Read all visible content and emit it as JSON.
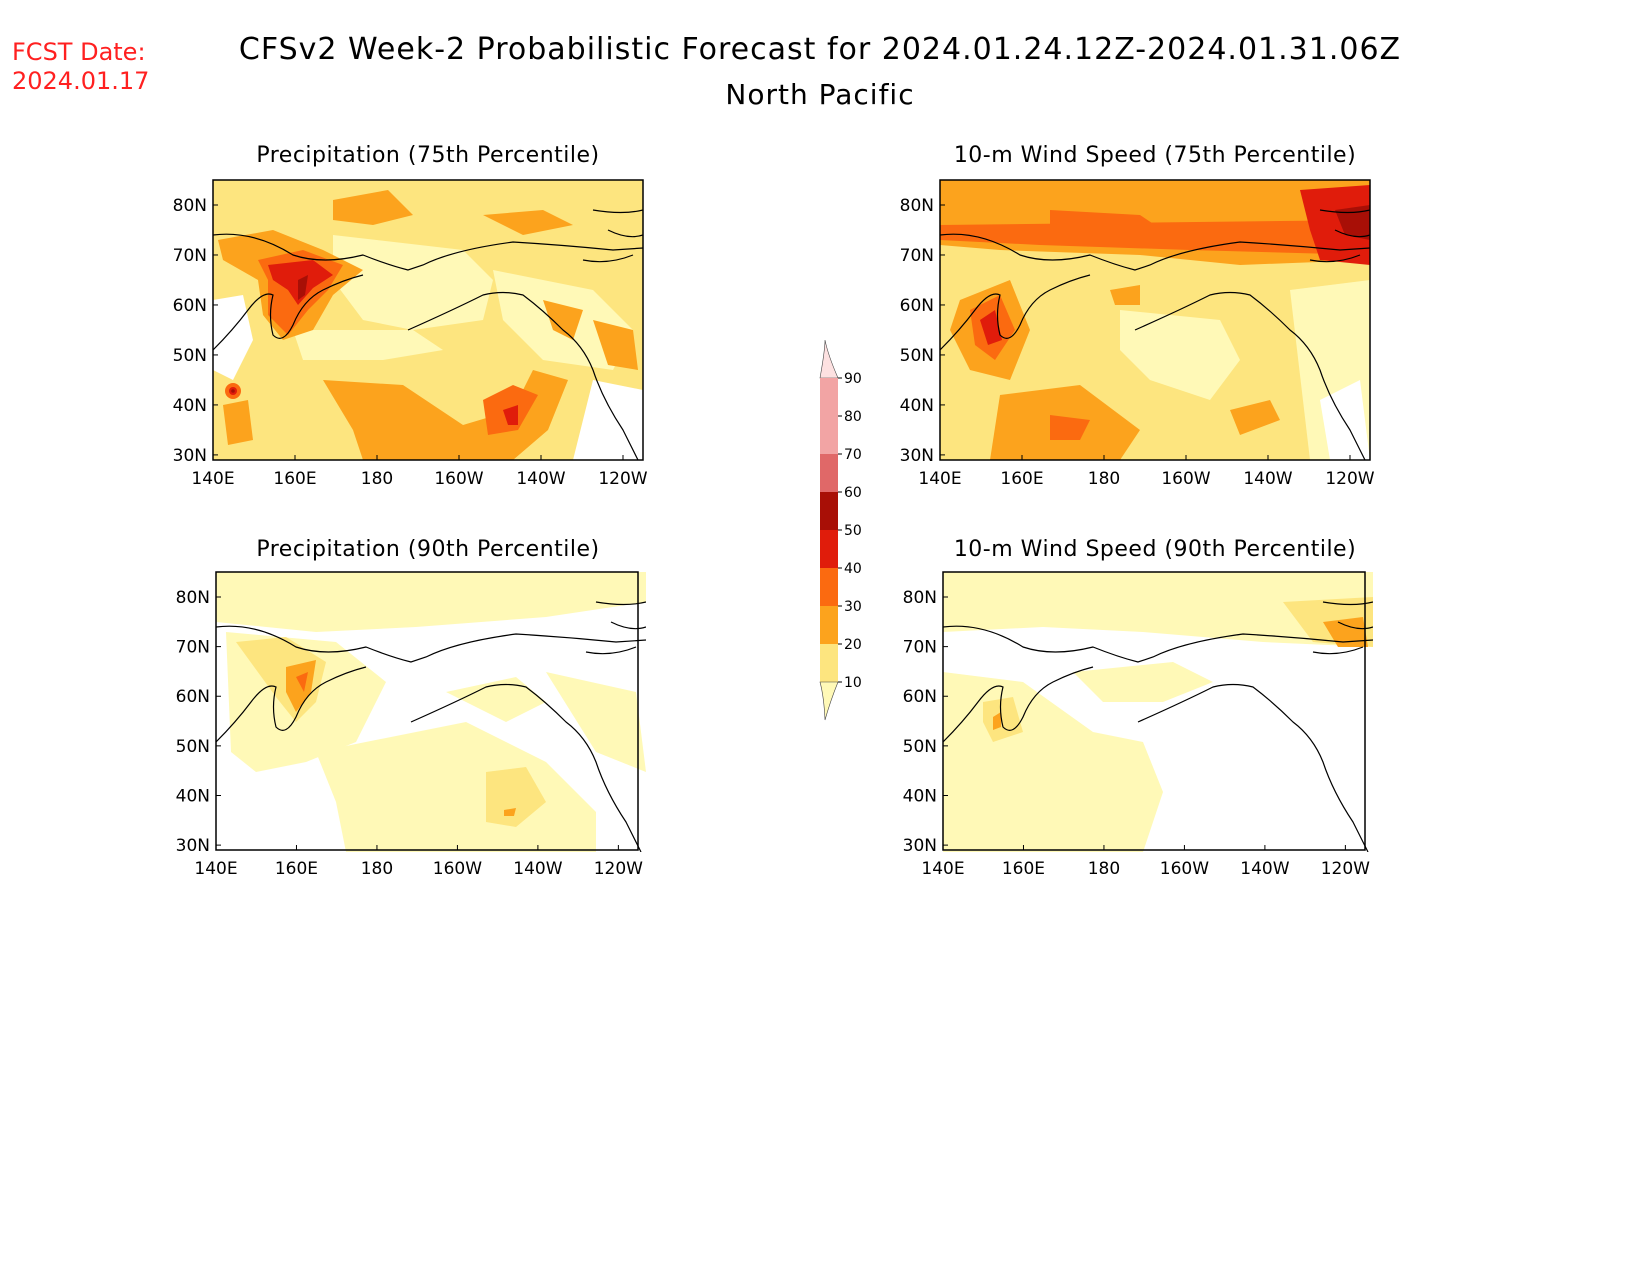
{
  "fcst_label": "FCST Date:",
  "fcst_date": "2024.01.17",
  "title": "CFSv2 Week-2 Probabilistic Forecast for 2024.01.24.12Z-2024.01.31.06Z",
  "subtitle": "North Pacific",
  "panels": [
    {
      "title": "Precipitation (75th Percentile)"
    },
    {
      "title": "10-m Wind Speed (75th Percentile)"
    },
    {
      "title": "Precipitation (90th Percentile)"
    },
    {
      "title": "10-m Wind Speed (90th Percentile)"
    }
  ],
  "axes": {
    "lon_labels": [
      "140E",
      "160E",
      "180",
      "160W",
      "140W",
      "120W"
    ],
    "lat_labels": [
      "80N",
      "70N",
      "60N",
      "50N",
      "40N",
      "30N"
    ]
  },
  "colorbar": {
    "levels": [
      "10",
      "20",
      "30",
      "40",
      "50",
      "60",
      "70",
      "80",
      "90"
    ],
    "colors": [
      "#fff9b7",
      "#fde57f",
      "#fca31d",
      "#fb6a10",
      "#e01c0b",
      "#a80f06",
      "#e06868",
      "#f2a4a4",
      "#fde1e1"
    ]
  }
}
